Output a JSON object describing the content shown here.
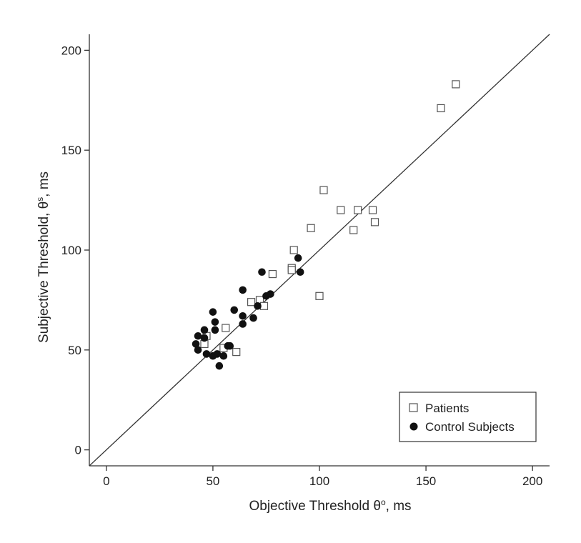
{
  "chart_data": {
    "type": "scatter",
    "title": "",
    "xlabel": "Objective Threshold θ",
    "xlabel_sup": "o",
    "xlabel_suffix": ", ms",
    "ylabel": "Subjective Threshold, θ",
    "ylabel_sup": "s",
    "ylabel_suffix": ", ms",
    "xlim": [
      -8,
      208
    ],
    "ylim": [
      -8,
      208
    ],
    "xticks": [
      0,
      50,
      100,
      150,
      200
    ],
    "yticks": [
      0,
      50,
      100,
      150,
      200
    ],
    "grid": false,
    "legend_position": "bottom-right",
    "reference_line": "y = x",
    "series": [
      {
        "name": "Patients",
        "marker": "open-square",
        "color": "#555555",
        "points": [
          [
            46,
            53
          ],
          [
            47,
            57
          ],
          [
            55,
            51
          ],
          [
            56,
            61
          ],
          [
            61,
            49
          ],
          [
            68,
            74
          ],
          [
            72,
            75
          ],
          [
            74,
            72
          ],
          [
            78,
            88
          ],
          [
            87,
            91
          ],
          [
            87,
            90
          ],
          [
            88,
            100
          ],
          [
            96,
            111
          ],
          [
            100,
            77
          ],
          [
            102,
            130
          ],
          [
            110,
            120
          ],
          [
            116,
            110
          ],
          [
            118,
            120
          ],
          [
            125,
            120
          ],
          [
            126,
            114
          ],
          [
            157,
            171
          ],
          [
            164,
            183
          ]
        ]
      },
      {
        "name": "Control Subjects",
        "marker": "filled-circle",
        "color": "#111111",
        "points": [
          [
            42,
            53
          ],
          [
            43,
            57
          ],
          [
            43,
            50
          ],
          [
            46,
            56
          ],
          [
            46,
            60
          ],
          [
            47,
            48
          ],
          [
            50,
            47
          ],
          [
            50,
            69
          ],
          [
            51,
            64
          ],
          [
            51,
            60
          ],
          [
            52,
            48
          ],
          [
            53,
            42
          ],
          [
            55,
            47
          ],
          [
            57,
            52
          ],
          [
            58,
            52
          ],
          [
            60,
            70
          ],
          [
            64,
            80
          ],
          [
            64,
            67
          ],
          [
            64,
            63
          ],
          [
            69,
            66
          ],
          [
            71,
            72
          ],
          [
            73,
            89
          ],
          [
            75,
            77
          ],
          [
            77,
            78
          ],
          [
            90,
            96
          ],
          [
            91,
            89
          ]
        ]
      }
    ]
  }
}
